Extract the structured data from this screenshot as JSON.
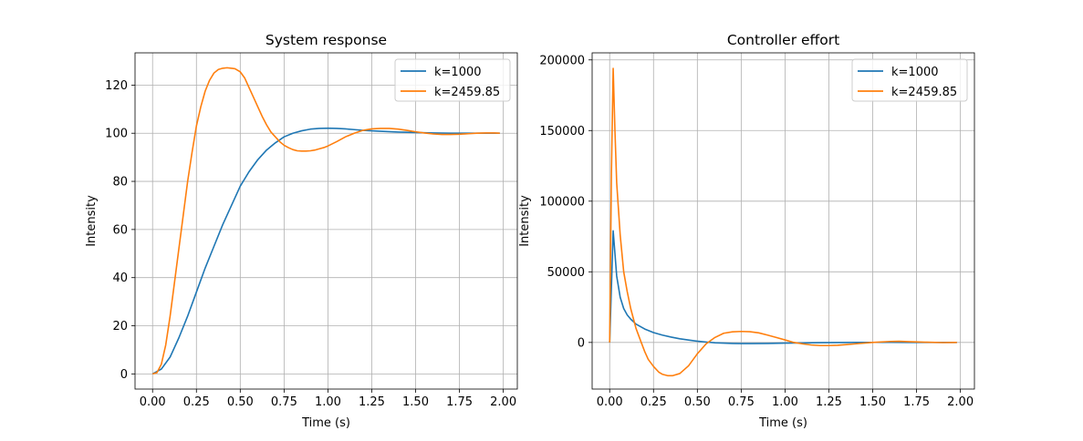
{
  "chart_data": [
    {
      "type": "line",
      "title": "System response",
      "xlabel": "Time (s)",
      "ylabel": "Intensity",
      "xlim": [
        -0.1,
        2.08
      ],
      "ylim": [
        -6.3,
        133.4
      ],
      "xticks": [
        0.0,
        0.25,
        0.5,
        0.75,
        1.0,
        1.25,
        1.5,
        1.75,
        2.0
      ],
      "xtick_labels": [
        "0.00",
        "0.25",
        "0.50",
        "0.75",
        "1.00",
        "1.25",
        "1.50",
        "1.75",
        "2.00"
      ],
      "yticks": [
        0,
        20,
        40,
        60,
        80,
        100,
        120
      ],
      "ytick_labels": [
        "0",
        "20",
        "40",
        "60",
        "80",
        "100",
        "120"
      ],
      "grid": true,
      "legend_position": "upper right",
      "series": [
        {
          "name": "k=1000",
          "color": "#1f77b4",
          "x": [
            0,
            0.05,
            0.1,
            0.15,
            0.2,
            0.25,
            0.3,
            0.35,
            0.4,
            0.45,
            0.5,
            0.55,
            0.6,
            0.65,
            0.7,
            0.75,
            0.8,
            0.85,
            0.9,
            0.95,
            1.0,
            1.05,
            1.1,
            1.15,
            1.2,
            1.25,
            1.3,
            1.4,
            1.5,
            1.6,
            1.7,
            1.8,
            1.9,
            1.98
          ],
          "y": [
            0,
            2,
            7,
            15,
            24,
            34,
            44,
            53,
            62,
            70,
            78,
            84,
            89,
            93,
            96,
            98.5,
            100,
            101,
            101.7,
            102,
            102.1,
            102,
            101.8,
            101.5,
            101.2,
            101,
            100.8,
            100.5,
            100.3,
            100.1,
            100,
            100,
            100,
            100
          ]
        },
        {
          "name": "k=2459.85",
          "color": "#ff7f0e",
          "x": [
            0,
            0.025,
            0.05,
            0.075,
            0.1,
            0.125,
            0.15,
            0.175,
            0.2,
            0.225,
            0.25,
            0.275,
            0.3,
            0.325,
            0.35,
            0.375,
            0.4,
            0.425,
            0.45,
            0.47,
            0.5,
            0.525,
            0.55,
            0.575,
            0.6,
            0.625,
            0.65,
            0.675,
            0.7,
            0.725,
            0.75,
            0.775,
            0.8,
            0.825,
            0.85,
            0.875,
            0.9,
            0.925,
            0.95,
            0.975,
            1.0,
            1.05,
            1.1,
            1.15,
            1.2,
            1.25,
            1.3,
            1.35,
            1.4,
            1.45,
            1.5,
            1.55,
            1.6,
            1.65,
            1.7,
            1.75,
            1.8,
            1.85,
            1.9,
            1.95,
            1.98
          ],
          "y": [
            0,
            0.5,
            4,
            12,
            24,
            38,
            52,
            66,
            80,
            92,
            103,
            111,
            117.5,
            122,
            125,
            126.5,
            127,
            127.2,
            127,
            126.8,
            125.5,
            123,
            119,
            115,
            111,
            107,
            103.5,
            100.5,
            98.5,
            96.5,
            95,
            94,
            93.2,
            92.7,
            92.6,
            92.6,
            92.7,
            93,
            93.5,
            94,
            94.7,
            96.5,
            98.5,
            100,
            101.2,
            101.8,
            102,
            102,
            101.7,
            101.2,
            100.6,
            100.1,
            99.7,
            99.5,
            99.5,
            99.6,
            99.8,
            100,
            100.1,
            100.1,
            100
          ]
        }
      ]
    },
    {
      "type": "line",
      "title": "Controller effort",
      "xlabel": "Time (s)",
      "ylabel": "Intensity",
      "xlim": [
        -0.1,
        2.08
      ],
      "ylim": [
        -33000,
        205000
      ],
      "xticks": [
        0.0,
        0.25,
        0.5,
        0.75,
        1.0,
        1.25,
        1.5,
        1.75,
        2.0
      ],
      "xtick_labels": [
        "0.00",
        "0.25",
        "0.50",
        "0.75",
        "1.00",
        "1.25",
        "1.50",
        "1.75",
        "2.00"
      ],
      "yticks": [
        0,
        50000,
        100000,
        150000,
        200000
      ],
      "ytick_labels": [
        "0",
        "50000",
        "100000",
        "150000",
        "200000"
      ],
      "grid": true,
      "legend_position": "upper right",
      "series": [
        {
          "name": "k=1000",
          "color": "#1f77b4",
          "x": [
            0,
            0.02,
            0.04,
            0.06,
            0.08,
            0.1,
            0.12,
            0.15,
            0.2,
            0.25,
            0.3,
            0.35,
            0.4,
            0.45,
            0.5,
            0.55,
            0.6,
            0.65,
            0.7,
            0.75,
            0.8,
            0.9,
            1.0,
            1.1,
            1.2,
            1.3,
            1.4,
            1.5,
            1.6,
            1.7,
            1.8,
            1.9,
            1.98
          ],
          "y": [
            0,
            79000,
            47000,
            32000,
            24000,
            19500,
            16500,
            13000,
            9500,
            7000,
            5200,
            3800,
            2600,
            1700,
            900,
            300,
            -200,
            -500,
            -700,
            -800,
            -800,
            -700,
            -500,
            -300,
            -150,
            -50,
            0,
            50,
            50,
            30,
            10,
            0,
            0
          ]
        },
        {
          "name": "k=2459.85",
          "color": "#ff7f0e",
          "x": [
            0,
            0.01,
            0.02,
            0.03,
            0.04,
            0.06,
            0.08,
            0.1,
            0.12,
            0.15,
            0.18,
            0.2,
            0.22,
            0.25,
            0.28,
            0.3,
            0.33,
            0.36,
            0.4,
            0.45,
            0.5,
            0.55,
            0.6,
            0.65,
            0.7,
            0.75,
            0.8,
            0.85,
            0.9,
            0.95,
            1.0,
            1.05,
            1.1,
            1.15,
            1.2,
            1.25,
            1.3,
            1.35,
            1.4,
            1.5,
            1.6,
            1.65,
            1.7,
            1.8,
            1.9,
            1.98
          ],
          "y": [
            0,
            120000,
            194000,
            150000,
            113000,
            76000,
            50000,
            36000,
            24000,
            10000,
            0,
            -6500,
            -12000,
            -17000,
            -21000,
            -22500,
            -23500,
            -23500,
            -22000,
            -16500,
            -8000,
            -1000,
            3500,
            6500,
            7500,
            7800,
            7600,
            6800,
            5200,
            3500,
            1800,
            0,
            -1000,
            -1800,
            -2200,
            -2200,
            -2000,
            -1500,
            -1000,
            0,
            700,
            800,
            600,
            200,
            -100,
            0
          ]
        }
      ]
    }
  ]
}
